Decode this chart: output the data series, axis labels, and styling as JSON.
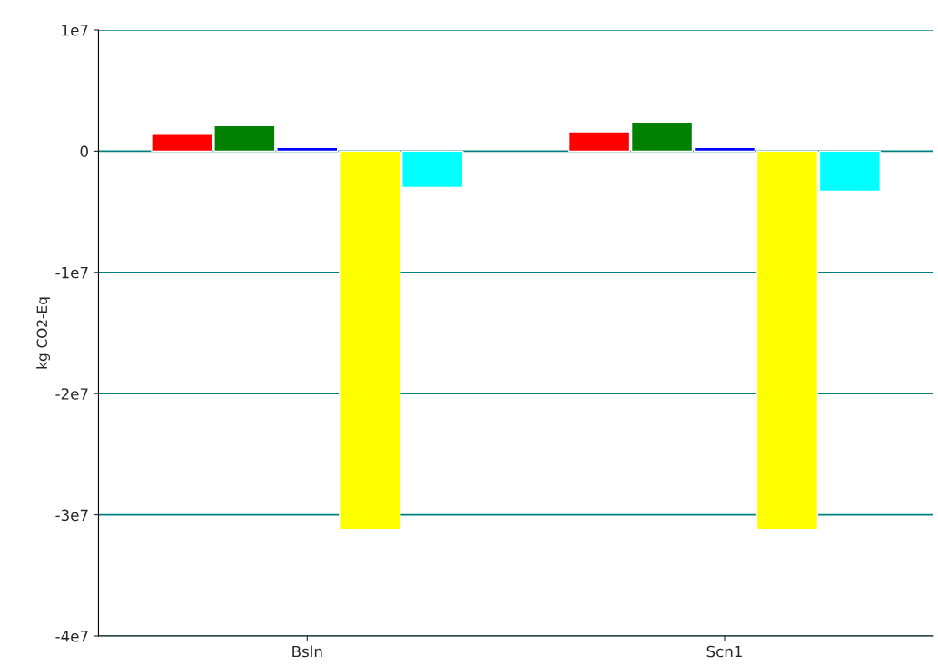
{
  "chart_data": {
    "type": "bar",
    "ylabel": "kg CO2-Eq",
    "categories": [
      "Bsln",
      "Scn1"
    ],
    "series": [
      {
        "color": "#ff0000",
        "values": [
          1400000,
          1600000
        ]
      },
      {
        "color": "#008000",
        "values": [
          2100000,
          2400000
        ]
      },
      {
        "color": "#0000ff",
        "values": [
          300000,
          300000
        ]
      },
      {
        "color": "#ffff00",
        "values": [
          -31200000,
          -31200000
        ]
      },
      {
        "color": "#00ffff",
        "values": [
          -3000000,
          -3300000
        ]
      }
    ],
    "ylim": [
      -40000000,
      10000000
    ],
    "yticks": [
      {
        "value": 10000000,
        "label": "1e7"
      },
      {
        "value": 0,
        "label": "0"
      },
      {
        "value": -10000000,
        "label": "-1e7"
      },
      {
        "value": -20000000,
        "label": "-2e7"
      },
      {
        "value": -30000000,
        "label": "-3e7"
      },
      {
        "value": -40000000,
        "label": "-4e7"
      }
    ],
    "grid": "y",
    "legend": false
  }
}
